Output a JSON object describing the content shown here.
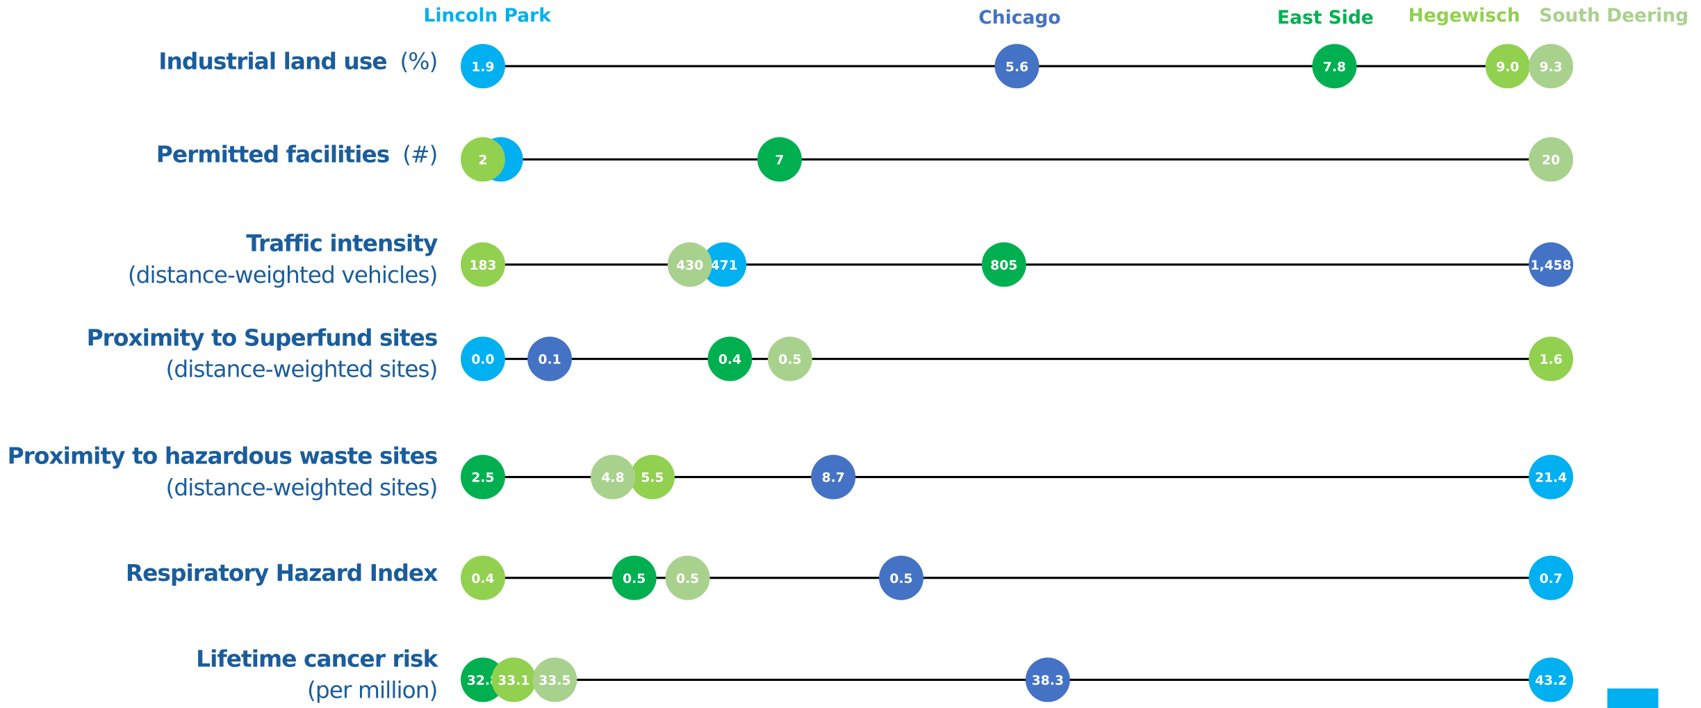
{
  "chart_data": {
    "type": "dot",
    "categories": [
      "Industrial land use",
      "Permitted facilities",
      "Traffic intensity",
      "Proximity to Superfund sites",
      "Proximity to hazardous waste sites",
      "Respiratory Hazard Index",
      "Lifetime cancer risk"
    ],
    "category_units": [
      "(%)",
      "(#)",
      "(distance-weighted vehicles)",
      "(distance-weighted sites)",
      "(distance-weighted sites)",
      null,
      "(per million)"
    ],
    "xlims": [
      [
        1.9,
        9.3
      ],
      [
        2,
        20
      ],
      [
        183,
        1458
      ],
      [
        0,
        1.6
      ],
      [
        2.5,
        21.4
      ],
      [
        0.42,
        0.66
      ],
      [
        32.8,
        43.2
      ]
    ],
    "series": [
      {
        "name": "Lincoln Park",
        "color": "#00b0f0",
        "values": [
          1.9,
          2.3,
          471,
          0,
          21.4,
          0.66,
          43.2
        ],
        "value_labels": [
          "1.9",
          "2",
          "471",
          "0.0",
          "21.4",
          "0.7",
          "43.2"
        ]
      },
      {
        "name": "Chicago",
        "color": "#4472c4",
        "values": [
          5.6,
          null,
          1458,
          0.1,
          8.7,
          0.514,
          38.3
        ],
        "value_labels": [
          "5.6",
          null,
          "1,458",
          "0.1",
          "8.7",
          "0.5",
          "38.3"
        ]
      },
      {
        "name": "East Side",
        "color": "#00b050",
        "values": [
          7.8,
          7,
          805,
          0.37,
          2.5,
          0.454,
          32.8
        ],
        "value_labels": [
          "7.8",
          "7",
          "805",
          "0.4",
          "2.5",
          "0.5",
          "32.8"
        ]
      },
      {
        "name": "Hegewisch",
        "color": "#92d050",
        "values": [
          9.0,
          2,
          183,
          1.6,
          5.5,
          0.42,
          33.1
        ],
        "value_labels": [
          "9.0",
          "2",
          "183",
          "1.6",
          "5.5",
          "0.4",
          "33.1"
        ]
      },
      {
        "name": "South Deering",
        "color": "#a9d18e",
        "values": [
          9.3,
          20,
          430,
          0.46,
          4.8,
          0.466,
          33.5
        ],
        "value_labels": [
          "9.3",
          "20",
          "430",
          "0.5",
          "4.8",
          "0.5",
          "33.5"
        ]
      }
    ]
  }
}
